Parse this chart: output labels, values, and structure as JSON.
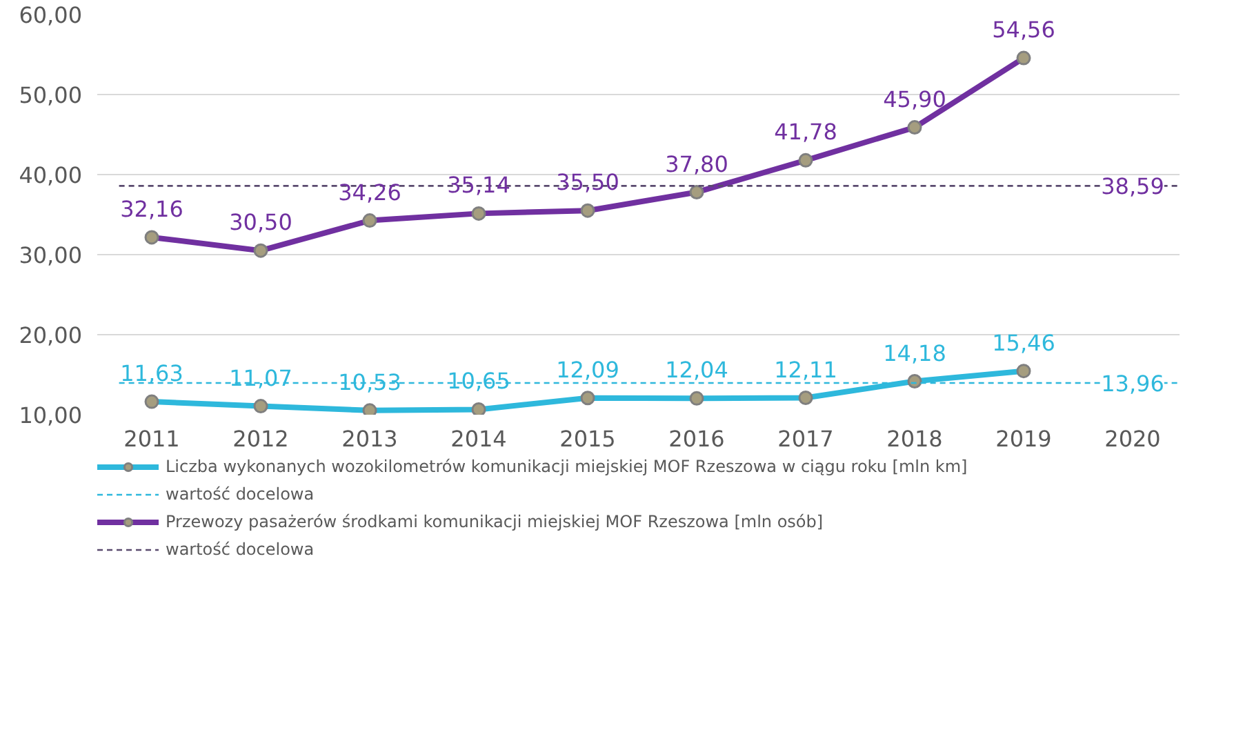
{
  "chart_data": {
    "type": "line",
    "categories": [
      "2011",
      "2012",
      "2013",
      "2014",
      "2015",
      "2016",
      "2017",
      "2018",
      "2019",
      "2020"
    ],
    "ylim": [
      10,
      60
    ],
    "yticks": [
      {
        "value": 10,
        "label": "10,00"
      },
      {
        "value": 20,
        "label": "20,00"
      },
      {
        "value": 30,
        "label": "30,00"
      },
      {
        "value": 40,
        "label": "40,00"
      },
      {
        "value": 50,
        "label": "50,00"
      },
      {
        "value": 60,
        "label": "60,00"
      }
    ],
    "grid": "y",
    "legend": "bottom",
    "marker": "circle",
    "line_style": "solid",
    "series": [
      {
        "name": "Liczba wykonanych wozokilometrów komunikacji miejskiej MOF Rzeszowa w ciągu roku [mln km]",
        "color": "#2eb8dc",
        "values": [
          11.63,
          11.07,
          10.53,
          10.65,
          12.09,
          12.04,
          12.11,
          14.18,
          15.46,
          null
        ],
        "value_labels": [
          "11,63",
          "11,07",
          "10,53",
          "10,65",
          "12,09",
          "12,04",
          "12,11",
          "14,18",
          "15,46",
          null
        ]
      },
      {
        "name": "Przewozy pasażerów środkami komunikacji miejskiej MOF Rzeszowa [mln osób]",
        "color": "#7030a0",
        "values": [
          32.16,
          30.5,
          34.26,
          35.14,
          35.5,
          37.8,
          41.78,
          45.9,
          54.56,
          null
        ],
        "value_labels": [
          "32,16",
          "30,50",
          "34,26",
          "35,14",
          "35,50",
          "37,80",
          "41,78",
          "45,90",
          "54,56",
          null
        ]
      }
    ],
    "ref_lines": [
      {
        "axis": "y",
        "value": 13.96,
        "label": "wartość docelowa",
        "color": "#2eb8dc",
        "line_style": "dashed"
      },
      {
        "axis": "y",
        "value": 38.59,
        "label": "wartość docelowa",
        "color": "#5a4a6e",
        "line_style": "dashed"
      }
    ],
    "annotations": [
      {
        "text": "13,96",
        "x": "2020",
        "y": 13.96
      },
      {
        "text": "38,59",
        "x": "2020",
        "y": 38.59
      }
    ]
  }
}
